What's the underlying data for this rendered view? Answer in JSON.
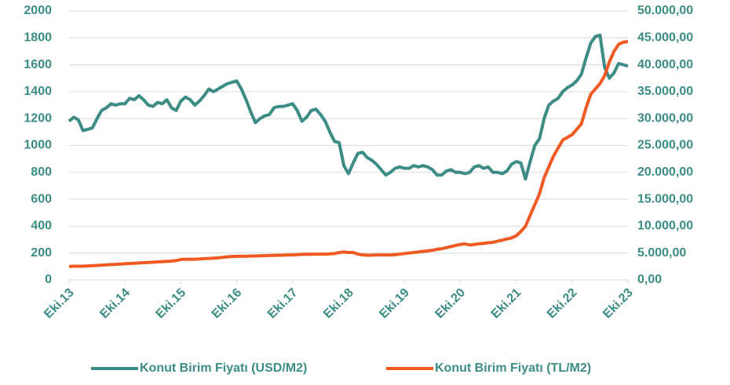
{
  "chart_data": {
    "type": "line",
    "categories": [
      "Eki.13",
      null,
      null,
      null,
      null,
      null,
      null,
      null,
      null,
      null,
      null,
      null,
      "Eki.14",
      null,
      null,
      null,
      null,
      null,
      null,
      null,
      null,
      null,
      null,
      null,
      "Eki.15",
      null,
      null,
      null,
      null,
      null,
      null,
      null,
      null,
      null,
      null,
      null,
      "Eki.16",
      null,
      null,
      null,
      null,
      null,
      null,
      null,
      null,
      null,
      null,
      null,
      "Eki.17",
      null,
      null,
      null,
      null,
      null,
      null,
      null,
      null,
      null,
      null,
      null,
      "Eki.18",
      null,
      null,
      null,
      null,
      null,
      null,
      null,
      null,
      null,
      null,
      null,
      "Eki.19",
      null,
      null,
      null,
      null,
      null,
      null,
      null,
      null,
      null,
      null,
      null,
      "Eki.20",
      null,
      null,
      null,
      null,
      null,
      null,
      null,
      null,
      null,
      null,
      null,
      "Eki.21",
      null,
      null,
      null,
      null,
      null,
      null,
      null,
      null,
      null,
      null,
      null,
      "Eki.22",
      null,
      null,
      null,
      null,
      null,
      null,
      null,
      null,
      null,
      null,
      null,
      "Eki.23"
    ],
    "series": [
      {
        "name": "Konut Birim Fiyatı (USD/M2)",
        "color": "#3b8c84",
        "values": [
          1180,
          1210,
          1190,
          1110,
          1120,
          1130,
          1200,
          1260,
          1280,
          1310,
          1300,
          1310,
          1310,
          1350,
          1340,
          1370,
          1340,
          1300,
          1290,
          1320,
          1310,
          1340,
          1280,
          1260,
          1330,
          1360,
          1340,
          1300,
          1330,
          1370,
          1420,
          1400,
          1420,
          1440,
          1460,
          1470,
          1480,
          1420,
          1340,
          1250,
          1170,
          1200,
          1220,
          1230,
          1280,
          1290,
          1290,
          1300,
          1310,
          1260,
          1180,
          1210,
          1260,
          1270,
          1230,
          1180,
          1100,
          1030,
          1020,
          850,
          790,
          870,
          940,
          950,
          910,
          890,
          860,
          820,
          780,
          800,
          830,
          840,
          830,
          830,
          850,
          840,
          850,
          840,
          820,
          780,
          780,
          810,
          820,
          800,
          800,
          790,
          800,
          840,
          850,
          830,
          840,
          800,
          800,
          790,
          810,
          860,
          880,
          870,
          750,
          880,
          1000,
          1050,
          1200,
          1300,
          1330,
          1350,
          1400,
          1430,
          1450,
          1480,
          1530,
          1650,
          1760,
          1810,
          1820,
          1580,
          1500,
          1540,
          1610,
          1600,
          1590
        ]
      },
      {
        "name": "Konut Birim Fiyatı (TL/M2)",
        "color": "#f05a22",
        "axis": "y2",
        "values": [
          2500,
          2550,
          2550,
          2550,
          2600,
          2650,
          2700,
          2750,
          2800,
          2850,
          2900,
          2950,
          3000,
          3050,
          3100,
          3150,
          3200,
          3250,
          3300,
          3350,
          3400,
          3450,
          3500,
          3600,
          3800,
          3850,
          3850,
          3850,
          3900,
          3950,
          4000,
          4050,
          4100,
          4200,
          4300,
          4350,
          4400,
          4400,
          4400,
          4450,
          4450,
          4500,
          4500,
          4550,
          4550,
          4600,
          4600,
          4650,
          4650,
          4700,
          4750,
          4800,
          4750,
          4800,
          4800,
          4800,
          4850,
          4900,
          5100,
          5200,
          5100,
          5100,
          4800,
          4650,
          4600,
          4600,
          4650,
          4650,
          4650,
          4650,
          4700,
          4800,
          4900,
          5000,
          5100,
          5200,
          5300,
          5400,
          5500,
          5700,
          5800,
          6000,
          6200,
          6400,
          6600,
          6700,
          6500,
          6600,
          6700,
          6800,
          6900,
          7000,
          7200,
          7400,
          7600,
          7800,
          8200,
          9000,
          10000,
          12000,
          14000,
          16000,
          19000,
          21000,
          23000,
          24500,
          26000,
          26500,
          27000,
          28000,
          29000,
          32000,
          34500,
          35500,
          36500,
          38000,
          40500,
          42500,
          43800,
          44200,
          44300
        ]
      }
    ],
    "ylim": [
      0,
      2000
    ],
    "yticks": [
      0,
      200,
      400,
      600,
      800,
      1000,
      1200,
      1400,
      1600,
      1800,
      2000
    ],
    "y2lim": [
      0,
      50000
    ],
    "y2ticks": [
      {
        "value": 0,
        "label": "0,00"
      },
      {
        "value": 5000,
        "label": "5.000,00"
      },
      {
        "value": 10000,
        "label": "10.000,00"
      },
      {
        "value": 15000,
        "label": "15.000,00"
      },
      {
        "value": 20000,
        "label": "20.000,00"
      },
      {
        "value": 25000,
        "label": "25.000,00"
      },
      {
        "value": 30000,
        "label": "30.000,00"
      },
      {
        "value": 35000,
        "label": "35.000,00"
      },
      {
        "value": 40000,
        "label": "40.000,00"
      },
      {
        "value": 45000,
        "label": "45.000,00"
      },
      {
        "value": 50000,
        "label": "50.000,00"
      }
    ],
    "grid": true,
    "legend": "bottom"
  }
}
